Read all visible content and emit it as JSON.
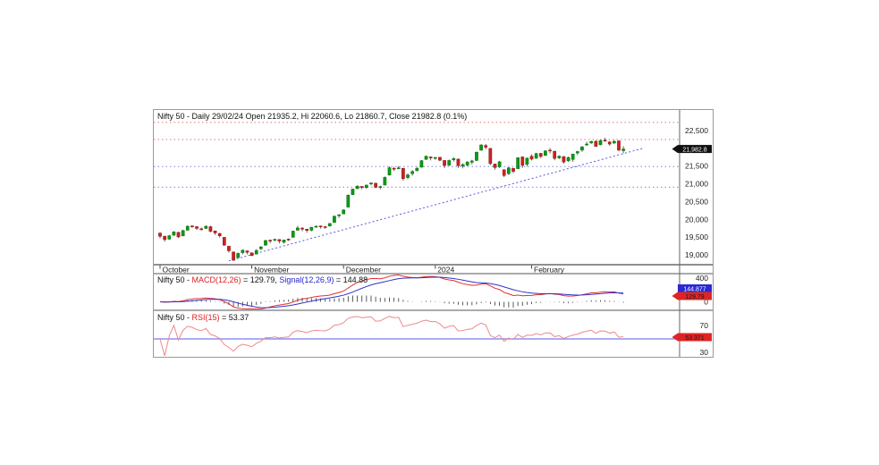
{
  "chart_data": {
    "type": "candlestick-with-indicators",
    "instrument": "Nifty 50",
    "timeframe": "Daily",
    "main_title": "Nifty 50 - Daily 29/02/24 Open 21935.2, Hi 22060.6, Lo 21860.7, Close 21982.8 (0.1%)",
    "ohlc_today": {
      "open": 21935.2,
      "high": 22060.6,
      "low": 21860.7,
      "close": 21982.8,
      "change_pct": "0.1%"
    },
    "price_panel": {
      "y_ticks": [
        {
          "value": 22500,
          "label": "22,500"
        },
        {
          "value": 22000,
          "label": "22,000"
        },
        {
          "value": 21500,
          "label": "21,500"
        },
        {
          "value": 21000,
          "label": "21,000"
        },
        {
          "value": 20500,
          "label": "20,500"
        },
        {
          "value": 20000,
          "label": "20,000"
        },
        {
          "value": 19500,
          "label": "19,500"
        },
        {
          "value": 19000,
          "label": "19,000"
        }
      ],
      "ylim": [
        18732,
        23078
      ],
      "last_price": 21982.8,
      "last_price_label": "21,982.8",
      "resistance_levels": [
        22730,
        22250
      ],
      "support_levels": [
        21490,
        20910
      ],
      "trendline": {
        "start": {
          "i": 15,
          "price": 18840
        },
        "end": {
          "i": 105.5,
          "price": 22010
        }
      }
    },
    "x_axis": {
      "ticks": [
        {
          "i": 0,
          "label": "October"
        },
        {
          "i": 20,
          "label": "November"
        },
        {
          "i": 40,
          "label": "December"
        },
        {
          "i": 60,
          "label": "2024"
        },
        {
          "i": 81,
          "label": "February"
        }
      ]
    },
    "candles": [
      [
        19620,
        19640,
        19470,
        19528
      ],
      [
        19530,
        19550,
        19380,
        19436
      ],
      [
        19450,
        19570,
        19430,
        19546
      ],
      [
        19560,
        19675,
        19545,
        19654
      ],
      [
        19640,
        19655,
        19480,
        19512
      ],
      [
        19540,
        19717,
        19535,
        19690
      ],
      [
        19700,
        19839,
        19690,
        19811
      ],
      [
        19820,
        19843,
        19772,
        19794
      ],
      [
        19800,
        19815,
        19710,
        19751
      ],
      [
        19740,
        19780,
        19691,
        19732
      ],
      [
        19750,
        19840,
        19740,
        19812
      ],
      [
        19800,
        19825,
        19641,
        19671
      ],
      [
        19680,
        19690,
        19570,
        19624
      ],
      [
        19610,
        19625,
        19495,
        19542
      ],
      [
        19500,
        19510,
        19257,
        19282
      ],
      [
        19250,
        19265,
        19075,
        19122
      ],
      [
        19090,
        19100,
        18838,
        18857
      ],
      [
        18930,
        19076,
        18926,
        19047
      ],
      [
        19070,
        19158,
        19025,
        19141
      ],
      [
        19120,
        19130,
        19020,
        19080
      ],
      [
        19064,
        19080,
        18973,
        18989
      ],
      [
        19030,
        19170,
        19020,
        19133
      ],
      [
        19180,
        19260,
        19140,
        19230
      ],
      [
        19280,
        19425,
        19270,
        19412
      ],
      [
        19420,
        19440,
        19335,
        19407
      ],
      [
        19420,
        19464,
        19390,
        19444
      ],
      [
        19440,
        19450,
        19330,
        19395
      ],
      [
        19360,
        19435,
        19329,
        19425
      ],
      [
        19450,
        19470,
        19400,
        19444
      ],
      [
        19500,
        19690,
        19495,
        19675
      ],
      [
        19700,
        19825,
        19690,
        19765
      ],
      [
        19760,
        19785,
        19670,
        19732
      ],
      [
        19730,
        19740,
        19630,
        19694
      ],
      [
        19700,
        19795,
        19670,
        19783
      ],
      [
        19790,
        19835,
        19768,
        19812
      ],
      [
        19820,
        19830,
        19745,
        19802
      ],
      [
        19800,
        19820,
        19740,
        19794
      ],
      [
        19820,
        19900,
        19800,
        19890
      ],
      [
        19920,
        20103,
        19915,
        20096
      ],
      [
        20120,
        20158,
        20045,
        20133
      ],
      [
        20160,
        20291,
        20150,
        20268
      ],
      [
        20350,
        20702,
        20340,
        20687
      ],
      [
        20700,
        20865,
        20690,
        20855
      ],
      [
        20870,
        20961,
        20852,
        20938
      ],
      [
        20930,
        20941,
        20850,
        20901
      ],
      [
        20900,
        20977,
        20860,
        20969
      ],
      [
        21000,
        21047,
        20960,
        21026
      ],
      [
        21020,
        21037,
        20880,
        20906
      ],
      [
        20920,
        20950,
        20850,
        20926
      ],
      [
        20970,
        21210,
        20960,
        21183
      ],
      [
        21250,
        21492,
        21235,
        21456
      ],
      [
        21440,
        21482,
        21365,
        21419
      ],
      [
        21430,
        21505,
        21415,
        21453
      ],
      [
        21440,
        21451,
        21087,
        21150
      ],
      [
        21180,
        21293,
        21135,
        21255
      ],
      [
        21290,
        21390,
        21232,
        21349
      ],
      [
        21370,
        21477,
        21360,
        21441
      ],
      [
        21470,
        21675,
        21460,
        21655
      ],
      [
        21690,
        21801,
        21678,
        21778
      ],
      [
        21760,
        21770,
        21662,
        21731
      ],
      [
        21740,
        21765,
        21680,
        21742
      ],
      [
        21750,
        21755,
        21640,
        21666
      ],
      [
        21660,
        21670,
        21448,
        21517
      ],
      [
        21530,
        21685,
        21500,
        21659
      ],
      [
        21680,
        21749,
        21630,
        21711
      ],
      [
        21700,
        21710,
        21450,
        21513
      ],
      [
        21500,
        21580,
        21440,
        21545
      ],
      [
        21530,
        21640,
        21490,
        21618
      ],
      [
        21610,
        21680,
        21550,
        21647
      ],
      [
        21660,
        21900,
        21640,
        21894
      ],
      [
        21950,
        22115,
        21930,
        22097
      ],
      [
        22080,
        22124,
        21970,
        22032
      ],
      [
        22000,
        22010,
        21530,
        21572
      ],
      [
        21560,
        21570,
        21400,
        21462
      ],
      [
        21480,
        21650,
        21448,
        21622
      ],
      [
        21400,
        21410,
        21192,
        21238
      ],
      [
        21290,
        21470,
        21250,
        21454
      ],
      [
        21440,
        21455,
        21300,
        21353
      ],
      [
        21430,
        21750,
        21420,
        21737
      ],
      [
        21760,
        21770,
        21450,
        21522
      ],
      [
        21550,
        21740,
        21490,
        21725
      ],
      [
        21780,
        21832,
        21658,
        21697
      ],
      [
        21720,
        21878,
        21715,
        21853
      ],
      [
        21860,
        21870,
        21726,
        21771
      ],
      [
        21800,
        21951,
        21790,
        21929
      ],
      [
        21950,
        22011,
        21860,
        21930
      ],
      [
        21920,
        21930,
        21665,
        21718
      ],
      [
        21730,
        21804,
        21700,
        21782
      ],
      [
        21770,
        21780,
        21574,
        21616
      ],
      [
        21650,
        21770,
        21620,
        21743
      ],
      [
        21690,
        21850,
        21625,
        21840
      ],
      [
        21870,
        21930,
        21810,
        21910
      ],
      [
        21950,
        22068,
        21900,
        22040
      ],
      [
        22100,
        22187,
        22065,
        22122
      ],
      [
        22150,
        22215,
        22130,
        22196
      ],
      [
        22200,
        22223,
        22045,
        22055
      ],
      [
        22100,
        22252,
        22090,
        22217
      ],
      [
        22230,
        22297,
        22186,
        22212
      ],
      [
        22180,
        22202,
        22075,
        22122
      ],
      [
        22150,
        22235,
        22120,
        22198
      ],
      [
        22210,
        22225,
        21915,
        21951
      ],
      [
        21935,
        22061,
        21861,
        21983
      ]
    ],
    "macd_panel": {
      "title": {
        "p1": "Nifty 50 - ",
        "p2": "MACD(12,26)",
        "p3": " = 129.79, ",
        "p4": "Signal(12,26,9)",
        "p5": " = 144.88"
      },
      "macd_value": 129.79,
      "signal_value": 144.88,
      "y_ticks": [
        {
          "value": 400,
          "label": "400"
        },
        {
          "value": 0,
          "label": "0"
        }
      ],
      "tags": {
        "signal": "144.877",
        "macd": "129.79"
      }
    },
    "rsi_panel": {
      "title": {
        "p1": "Nifty 50 - ",
        "p2": "RSI(15)",
        "p3": " = 53.37"
      },
      "rsi_value": 53.37,
      "period": 15,
      "y_ticks": [
        {
          "value": 70,
          "label": "70"
        },
        {
          "value": 30,
          "label": "30"
        }
      ],
      "mid_line": 50,
      "tag": "53.371"
    }
  },
  "colors": {
    "up_body": "#0c9a14",
    "up_stroke": "#06700c",
    "down_body": "#cc2222",
    "down_stroke": "#8e1616",
    "wick": "#444444",
    "resistance_dotted": "#e87373",
    "support_dotted": "#8282de",
    "trendline": "#5858dd",
    "macd_line": "#e03030",
    "signal_line": "#3232c8",
    "histogram": "#333333",
    "rsi_line": "#ee8989",
    "rsi_mid": "#7a7aea",
    "tag_price_bg": "#111111",
    "tag_price_fg": "#ffffff",
    "tag_signal_bg": "#2a2ad0",
    "tag_signal_fg": "#ffffff",
    "tag_red_bg": "#dd2525",
    "tag_red_fg": "#1a1a1a",
    "frame_border": "#9a9a9a",
    "divider": "#666666",
    "separator_gray": "#8f8f8f",
    "separator_dark": "#555555",
    "text": "#222222",
    "tick": "#444444"
  }
}
